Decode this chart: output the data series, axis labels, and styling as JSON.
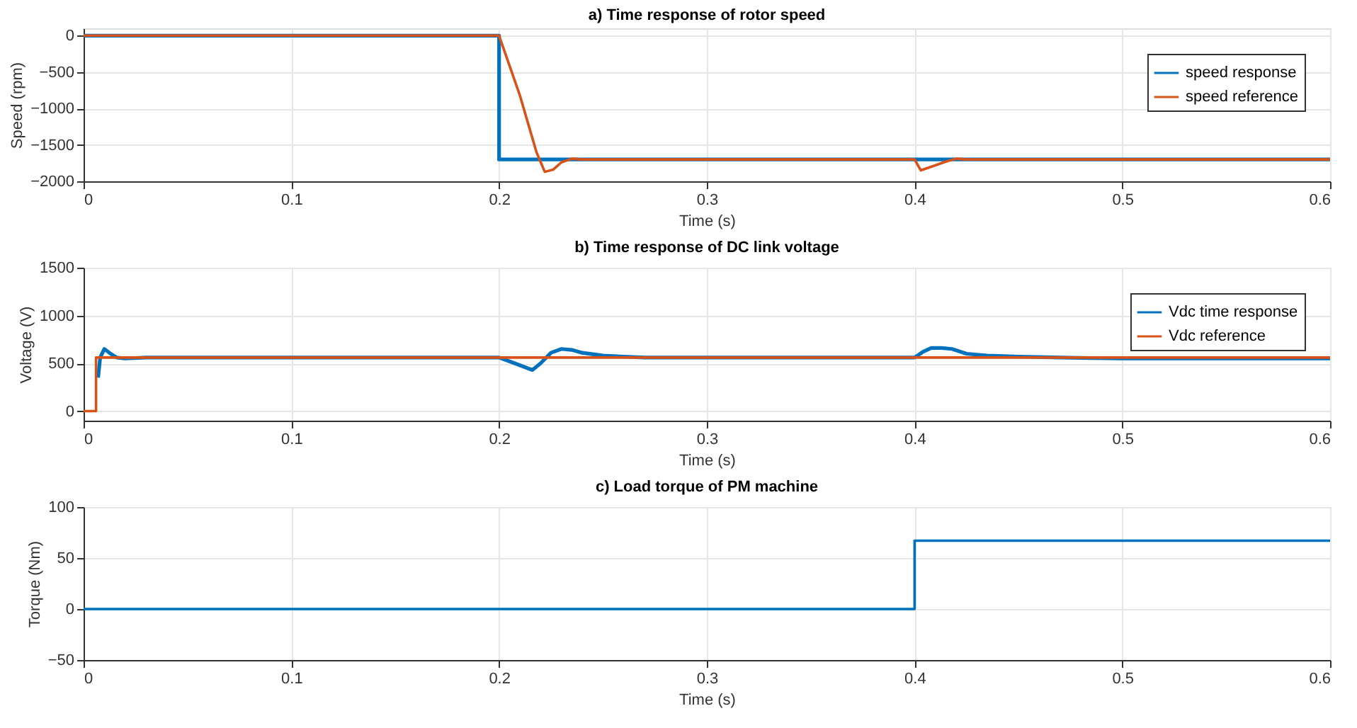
{
  "chart_data": [
    {
      "type": "line",
      "title": "a) Time response of rotor speed",
      "xlabel": "Time (s)",
      "ylabel": "Speed (rpm)",
      "xlim": [
        0,
        0.6
      ],
      "xticks": [
        0,
        0.1,
        0.2,
        0.3,
        0.4,
        0.5,
        0.6
      ],
      "ylim": [
        -2000,
        100
      ],
      "yticks": [
        -2000,
        -1500,
        -1000,
        -500,
        0
      ],
      "grid": true,
      "legend": "top right",
      "line_style": "solid",
      "marker": "none",
      "series": [
        {
          "name": "speed response",
          "color": "#0072bd",
          "x": [
            0,
            0.2,
            0.2,
            0.6
          ],
          "values": [
            0,
            0,
            -1700,
            -1700
          ]
        },
        {
          "name": "speed reference",
          "color": "#d95319",
          "x": [
            0,
            0.2,
            0.21,
            0.218,
            0.222,
            0.226,
            0.23,
            0.235,
            0.24,
            0.25,
            0.3,
            0.4,
            0.403,
            0.408,
            0.415,
            0.42,
            0.425,
            0.45,
            0.5,
            0.6
          ],
          "values": [
            0,
            0,
            -820,
            -1600,
            -1870,
            -1840,
            -1740,
            -1690,
            -1700,
            -1700,
            -1700,
            -1700,
            -1850,
            -1800,
            -1730,
            -1690,
            -1700,
            -1700,
            -1700,
            -1700
          ]
        }
      ]
    },
    {
      "type": "line",
      "title": "b) Time response of DC link voltage",
      "xlabel": "Time (s)",
      "ylabel": "Voltage (V)",
      "xlim": [
        0,
        0.6
      ],
      "xticks": [
        0,
        0.1,
        0.2,
        0.3,
        0.4,
        0.5,
        0.6
      ],
      "ylim": [
        -100,
        1500
      ],
      "yticks": [
        0,
        500,
        1000,
        1500
      ],
      "grid": true,
      "legend": "top right",
      "line_style": "solid",
      "marker": "none",
      "series": [
        {
          "name": "Vdc time response",
          "color": "#0072bd",
          "x": [
            0.007,
            0.008,
            0.01,
            0.013,
            0.016,
            0.02,
            0.03,
            0.1,
            0.2,
            0.205,
            0.21,
            0.216,
            0.22,
            0.225,
            0.23,
            0.235,
            0.24,
            0.25,
            0.26,
            0.27,
            0.3,
            0.4,
            0.404,
            0.408,
            0.413,
            0.418,
            0.425,
            0.435,
            0.45,
            0.47,
            0.5,
            0.6
          ],
          "values": [
            350,
            560,
            650,
            600,
            560,
            550,
            560,
            560,
            560,
            520,
            480,
            430,
            500,
            610,
            650,
            640,
            610,
            580,
            570,
            560,
            560,
            560,
            620,
            660,
            660,
            650,
            600,
            580,
            570,
            560,
            550,
            550
          ]
        },
        {
          "name": "Vdc reference",
          "color": "#d95319",
          "x": [
            0,
            0.003,
            0.006,
            0.006,
            0.1,
            0.2,
            0.3,
            0.4,
            0.5,
            0.6
          ],
          "values": [
            0,
            0,
            0,
            560,
            560,
            560,
            560,
            560,
            560,
            560
          ]
        }
      ]
    },
    {
      "type": "line",
      "title": "c) Load torque of PM machine",
      "xlabel": "Time (s)",
      "ylabel": "Torque (Nm)",
      "xlim": [
        0,
        0.6
      ],
      "xticks": [
        0,
        0.1,
        0.2,
        0.3,
        0.4,
        0.5,
        0.6
      ],
      "ylim": [
        -50,
        100
      ],
      "yticks": [
        -50,
        0,
        50,
        100
      ],
      "grid": true,
      "line_style": "solid",
      "marker": "none",
      "series": [
        {
          "color": "#0072bd",
          "x": [
            0,
            0.4,
            0.4,
            0.6
          ],
          "values": [
            0,
            0,
            67,
            67
          ]
        }
      ]
    }
  ]
}
